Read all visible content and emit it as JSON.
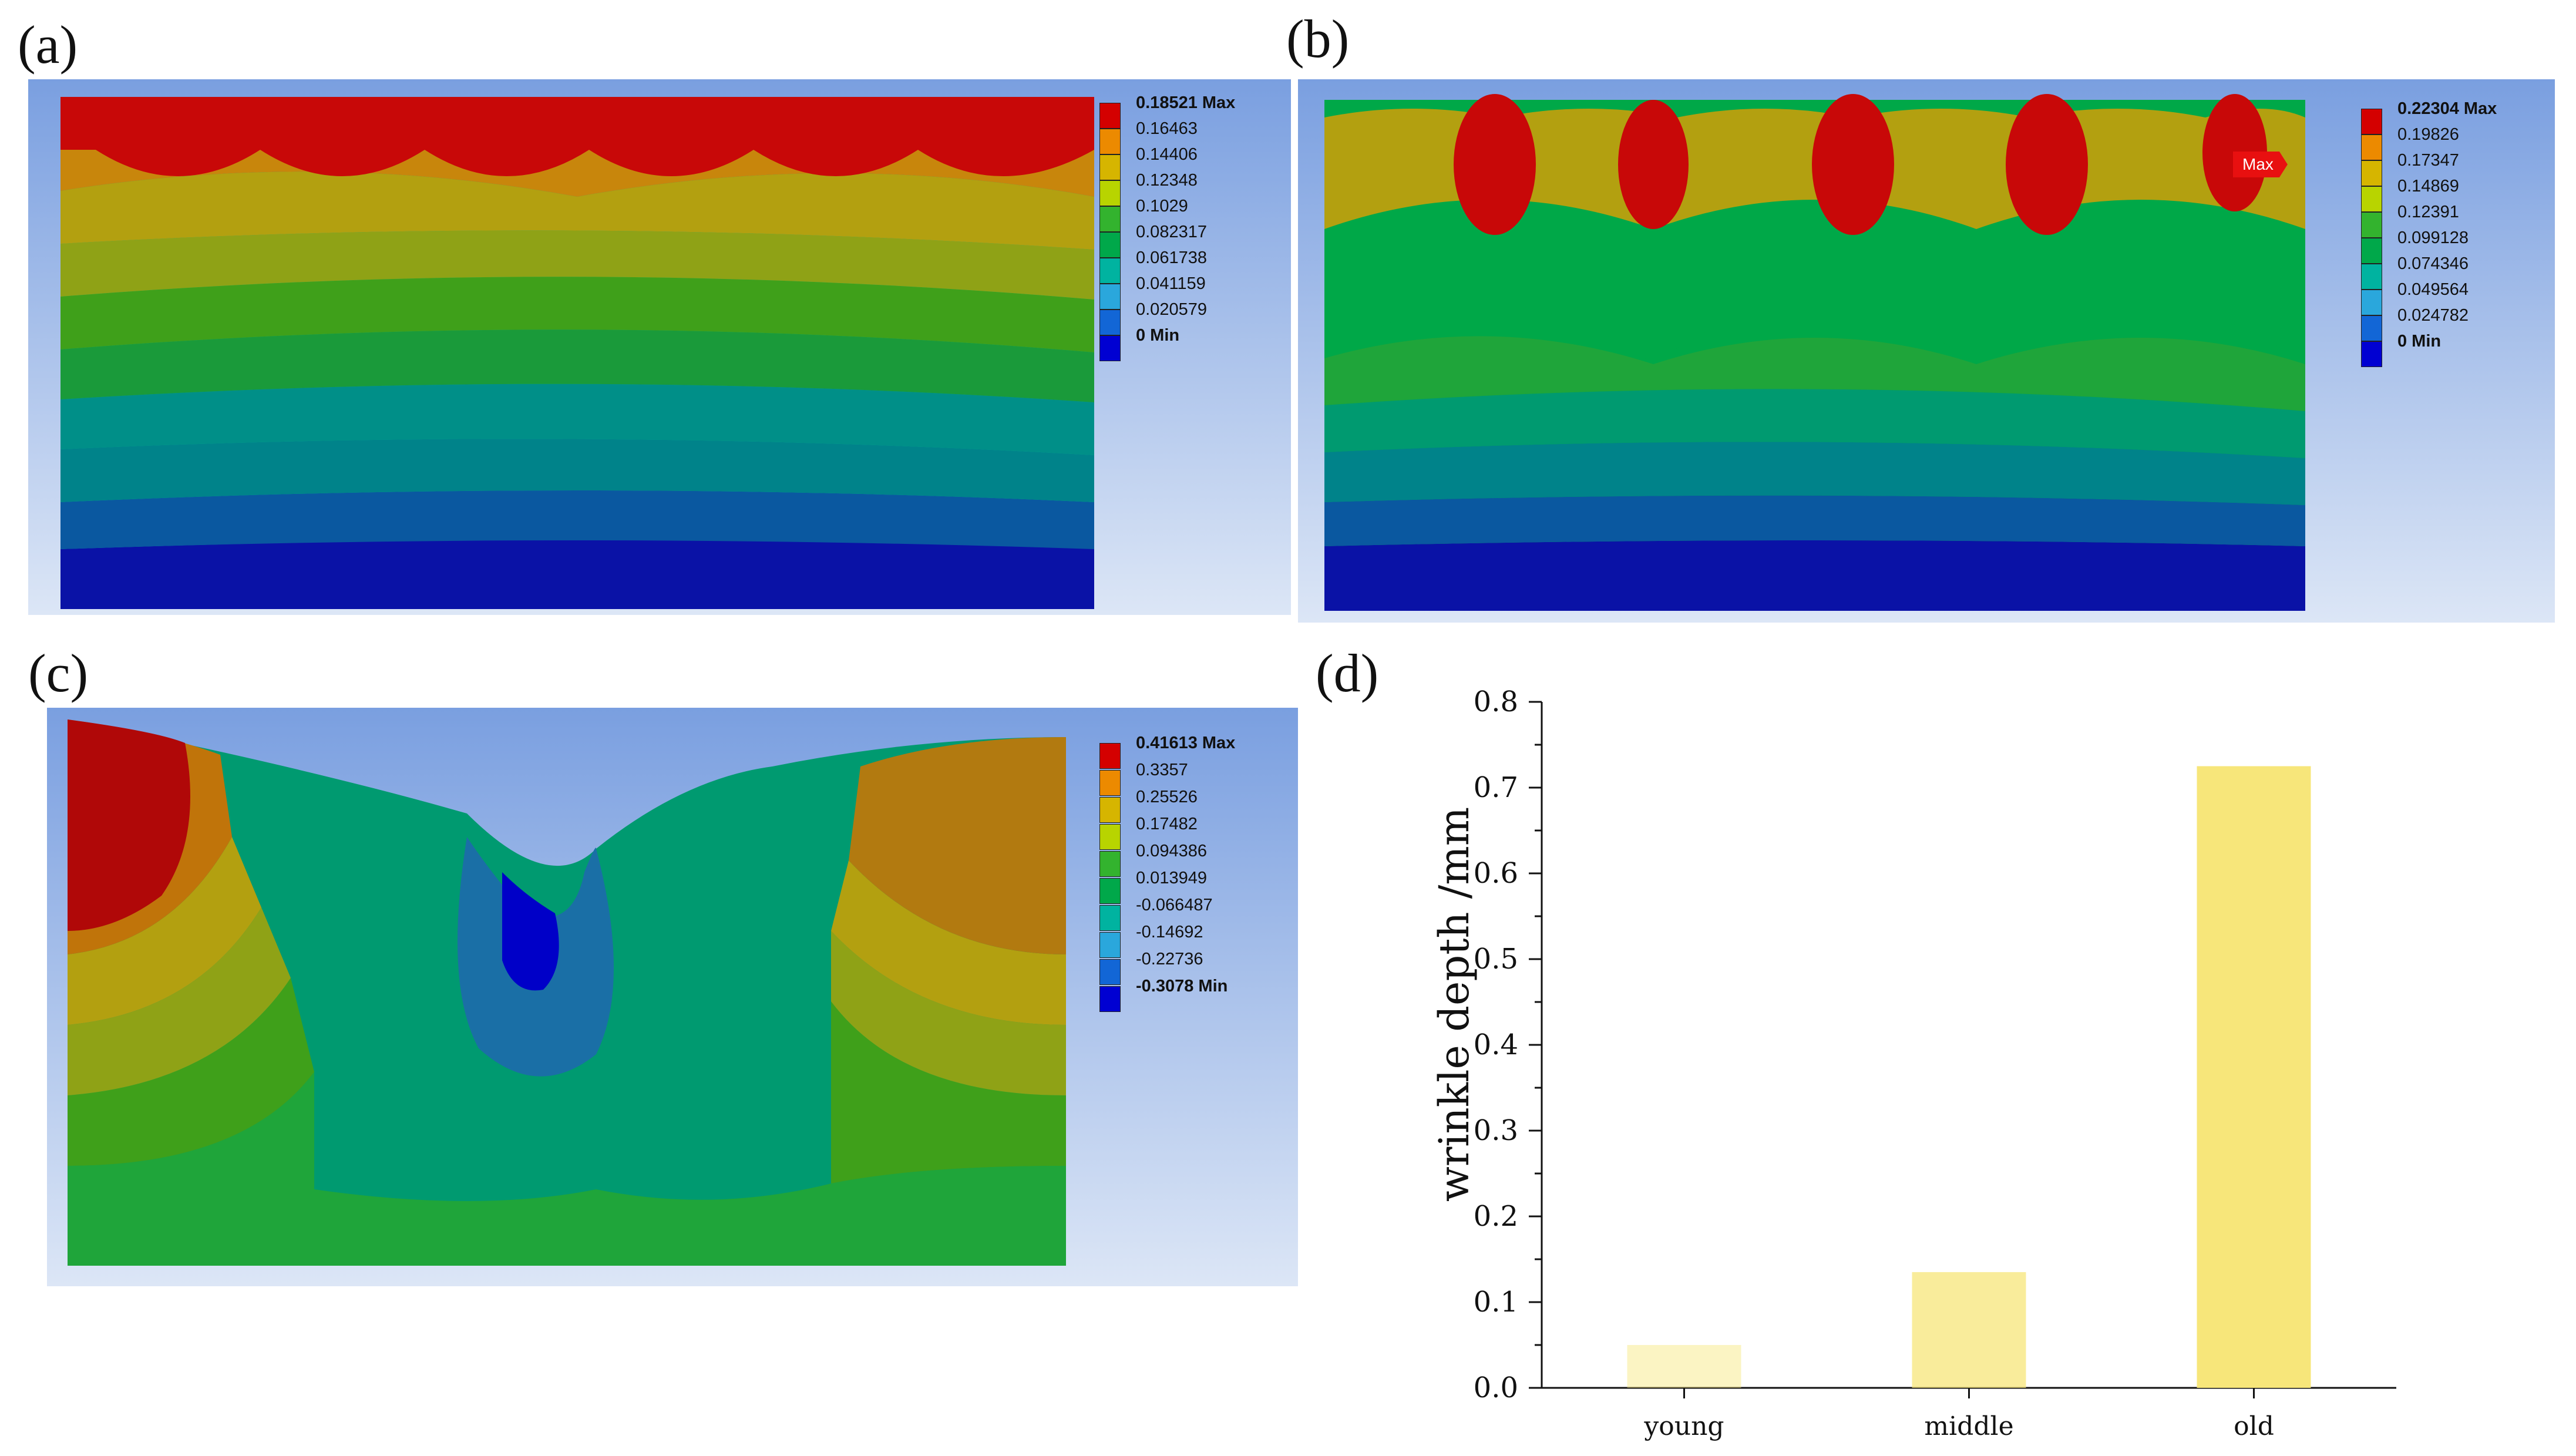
{
  "panels": {
    "a": {
      "label": "(a)",
      "legend": [
        "0.18521 Max",
        "0.16463",
        "0.14406",
        "0.12348",
        "0.1029",
        "0.082317",
        "0.061738",
        "0.041159",
        "0.020579",
        "0 Min"
      ]
    },
    "b": {
      "label": "(b)",
      "legend": [
        "0.22304 Max",
        "0.19826",
        "0.17347",
        "0.14869",
        "0.12391",
        "0.099128",
        "0.074346",
        "0.049564",
        "0.024782",
        "0 Min"
      ],
      "max_tag": "Max"
    },
    "c": {
      "label": "(c)",
      "legend": [
        "0.41613 Max",
        "0.3357",
        "0.25526",
        "0.17482",
        "0.094386",
        "0.013949",
        "-0.066487",
        "-0.14692",
        "-0.22736",
        "-0.3078 Min"
      ]
    },
    "d": {
      "label": "(d)"
    }
  },
  "colors": {
    "legend": [
      "#d40000",
      "#ec8a00",
      "#d6b500",
      "#b8d400",
      "#33b32e",
      "#00a84a",
      "#00b3a0",
      "#2aa7dc",
      "#1266d6",
      "#0000d2"
    ],
    "bar": "#f7e67a",
    "background_blue_top": "#7a9fe0",
    "background_blue_bottom": "#dce6f6"
  },
  "chart_data": {
    "type": "bar",
    "categories": [
      "young",
      "middle",
      "old"
    ],
    "values": [
      0.05,
      0.135,
      0.725
    ],
    "bar_opacity": [
      0.45,
      0.75,
      1.0
    ],
    "ylabel": "wrinkle depth /mm",
    "xlabel": "",
    "ylim": [
      0,
      0.8
    ],
    "yticks": [
      "0.0",
      "0.1",
      "0.2",
      "0.3",
      "0.4",
      "0.5",
      "0.6",
      "0.7",
      "0.8"
    ]
  }
}
